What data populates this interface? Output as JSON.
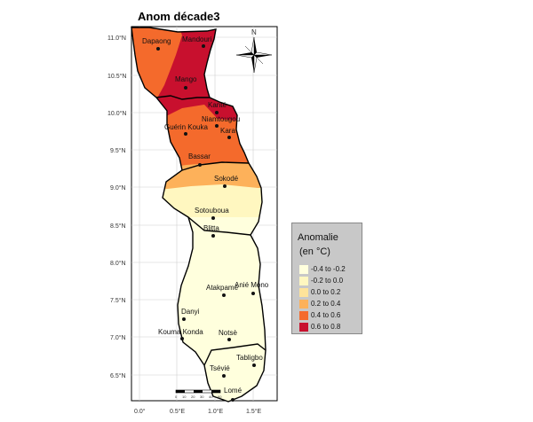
{
  "title": "Anom décade3",
  "lat_labels": [
    "11.0°N",
    "10.5°N",
    "10.0°N",
    "9.5°N",
    "9.0°N",
    "8.5°N",
    "8.0°N",
    "7.5°N",
    "7.0°N",
    "6.5°N"
  ],
  "lon_labels": [
    "0.0°",
    "0.5°E",
    "1.0°E",
    "1.5°E"
  ],
  "scale_bar_labels": [
    "0",
    "10",
    "20",
    "30",
    "40",
    "60"
  ],
  "north_arrow_label": "N",
  "legend": {
    "title_line1": "Anomalie",
    "title_line2": "(en °C)",
    "items": [
      {
        "label": "-0.4 to -0.2",
        "color": "#ffffdd"
      },
      {
        "label": "-0.2 to 0.0",
        "color": "#fff7c0"
      },
      {
        "label": "0.0 to 0.2",
        "color": "#fee39a"
      },
      {
        "label": "0.2 to 0.4",
        "color": "#fdb15a"
      },
      {
        "label": "0.4 to 0.6",
        "color": "#f46a2c"
      },
      {
        "label": "0.6 to 0.8",
        "color": "#c8102e"
      }
    ]
  },
  "cities": [
    "Dapaong",
    "Mandouri",
    "Mango",
    "Kanté",
    "Niamtougou",
    "Guérin Kouka",
    "Kara",
    "Bassar",
    "Sokodé",
    "Sotouboua",
    "Blitta",
    "Atakpamé",
    "Anié Mono",
    "Danyi",
    "Kouma Konda",
    "Notsè",
    "Tabligbo",
    "Tsévié",
    "Lomé"
  ]
}
